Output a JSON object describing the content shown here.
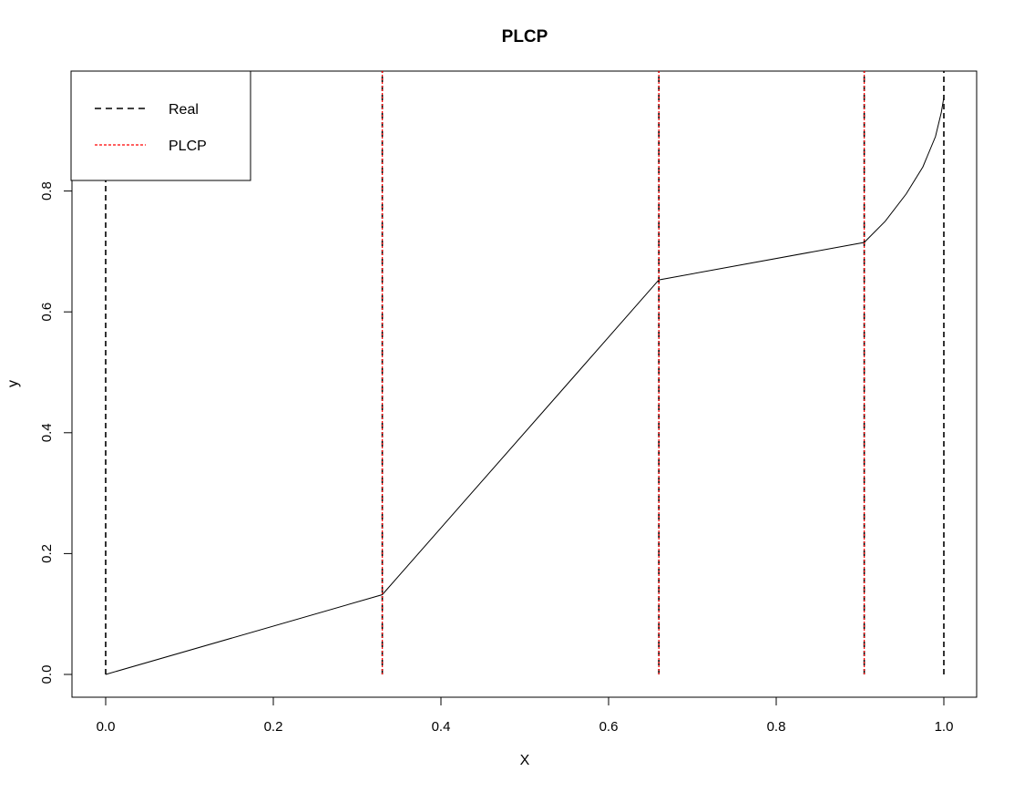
{
  "chart_data": {
    "type": "line",
    "title": "PLCP",
    "xlabel": "X",
    "ylabel": "y",
    "xlim": [
      0.0,
      1.0
    ],
    "ylim": [
      0.0,
      1.0
    ],
    "x_ticks": [
      "0.0",
      "0.2",
      "0.4",
      "0.6",
      "0.8",
      "1.0"
    ],
    "y_ticks": [
      "0.0",
      "0.2",
      "0.4",
      "0.6",
      "0.8"
    ],
    "grid": false,
    "legend": {
      "placement": "top-left",
      "entries": [
        {
          "label": "Real",
          "color": "#000000",
          "style": "dashed"
        },
        {
          "label": "PLCP",
          "color": "#ff0000",
          "style": "dotted"
        }
      ]
    },
    "series": [
      {
        "kind": "curve",
        "color": "#000000",
        "points": [
          [
            0.0,
            0.0
          ],
          [
            0.33,
            0.132
          ],
          [
            0.66,
            0.653
          ],
          [
            0.905,
            0.715
          ],
          [
            0.93,
            0.75
          ],
          [
            0.955,
            0.795
          ],
          [
            0.975,
            0.84
          ],
          [
            0.99,
            0.89
          ],
          [
            0.997,
            0.93
          ],
          [
            1.0,
            0.955
          ]
        ]
      },
      {
        "name": "Real",
        "kind": "vlines",
        "color": "#000000",
        "style": "dashed",
        "x": [
          0.0,
          0.33,
          0.66,
          0.905,
          1.0
        ]
      },
      {
        "name": "PLCP",
        "kind": "vlines",
        "color": "#ff0000",
        "style": "dotted",
        "x": [
          0.33,
          0.66,
          0.905
        ]
      }
    ]
  }
}
